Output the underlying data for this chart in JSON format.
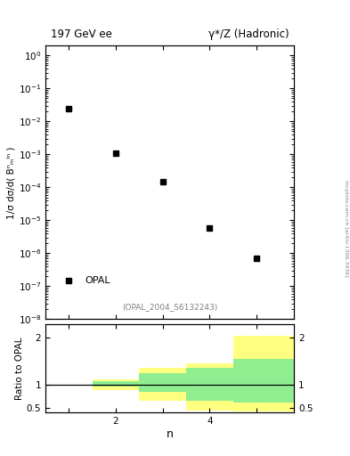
{
  "title_left": "197 GeV ee",
  "title_right": "γ*/Z (Hadronic)",
  "xlabel": "n",
  "ylabel_top": "1/σ dσ/d( Bⁿₘᴵⁿ )",
  "ylabel_bottom": "Ratio to OPAL",
  "ref_label": "(OPAL_2004_S6132243)",
  "legend_label": "OPAL",
  "data_x": [
    1,
    2,
    3,
    4,
    5
  ],
  "data_y": [
    0.025,
    0.0011,
    0.00015,
    6e-06,
    7e-07
  ],
  "ylim_top_lo": 1e-08,
  "ylim_top_hi": 2.0,
  "ylim_bottom_lo": 0.4,
  "ylim_bottom_hi": 2.3,
  "yticks_bottom": [
    0.5,
    1.0,
    2.0
  ],
  "xlim_lo": 0.5,
  "xlim_hi": 5.8,
  "ratio_x_edges": [
    0.5,
    1.5,
    2.5,
    3.5,
    4.5,
    5.8
  ],
  "ratio_green_lo": [
    1.0,
    0.95,
    0.85,
    0.65,
    0.62
  ],
  "ratio_green_hi": [
    1.0,
    1.08,
    1.25,
    1.35,
    1.55
  ],
  "ratio_yellow_lo": [
    1.0,
    0.88,
    0.65,
    0.45,
    0.43
  ],
  "ratio_yellow_hi": [
    1.0,
    1.12,
    1.35,
    1.45,
    2.05
  ],
  "color_green": "#90ee90",
  "color_yellow": "#ffff80",
  "color_data": "#000000",
  "side_label": "mcplots.cern.ch [arXiv:1306.3436]"
}
